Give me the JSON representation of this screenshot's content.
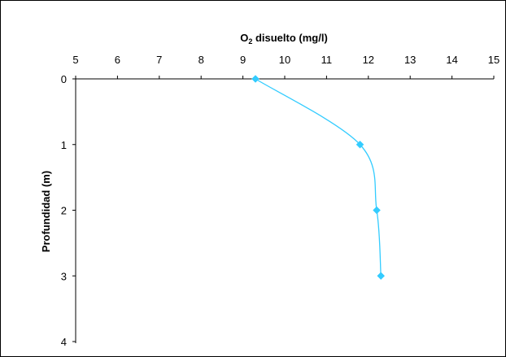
{
  "chart_data": {
    "type": "line",
    "title": "",
    "xlabel_main": "O",
    "xlabel_sub": "2",
    "xlabel_rest": " disuelto (mg/l)",
    "ylabel": "Profundidad (m)",
    "xlim": [
      5,
      15
    ],
    "ylim": [
      0,
      4
    ],
    "y_reversed": true,
    "x_axis_position": "top",
    "x_ticks": [
      "5",
      "6",
      "7",
      "8",
      "9",
      "10",
      "11",
      "12",
      "13",
      "14",
      "15"
    ],
    "y_ticks": [
      "0",
      "1",
      "2",
      "3",
      "4"
    ],
    "grid": false,
    "legend": "none",
    "series": [
      {
        "points": [
          {
            "x": 9.3,
            "y": 0
          },
          {
            "x": 11.8,
            "y": 1
          },
          {
            "x": 12.2,
            "y": 2
          },
          {
            "x": 12.3,
            "y": 3
          }
        ],
        "color": "#33CCFF",
        "smooth": true,
        "marker": "diamond"
      }
    ]
  }
}
